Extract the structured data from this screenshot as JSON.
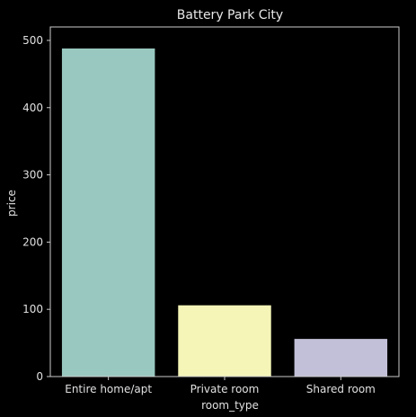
{
  "chart_data": {
    "type": "bar",
    "title": "Battery Park City",
    "xlabel": "room_type",
    "ylabel": "price",
    "categories": [
      "Entire home/apt",
      "Private room",
      "Shared room"
    ],
    "values": [
      488,
      106,
      56
    ],
    "ylim": [
      0,
      520
    ],
    "yticks": [
      0,
      100,
      200,
      300,
      400,
      500
    ],
    "ytick_labels": [
      "0",
      "100",
      "200",
      "300",
      "400",
      "500"
    ],
    "grid": false,
    "legend": "none",
    "colors": [
      "#98c8c0",
      "#f5f5b8",
      "#c2c0d8"
    ],
    "axes_color": "#cccccc",
    "background": "#000000"
  }
}
